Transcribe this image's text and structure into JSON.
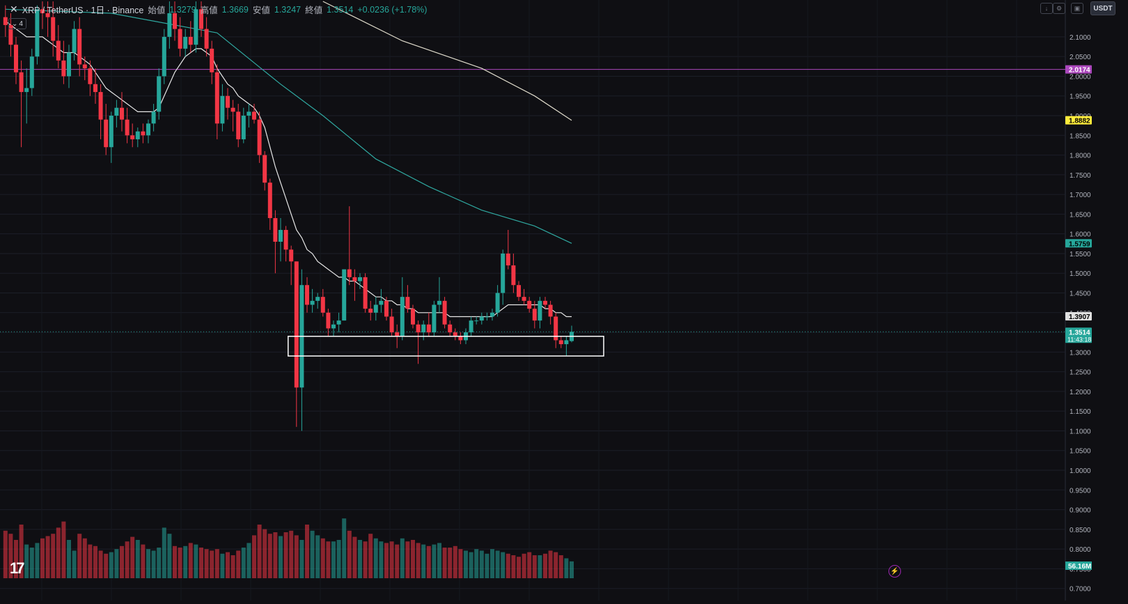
{
  "header": {
    "symbol": "XRP / TetherUS · 1日 · Binance",
    "open_label": "始値",
    "open": "1.3279",
    "high_label": "高値",
    "high": "1.3669",
    "low_label": "安値",
    "low": "1.3247",
    "close_label": "終値",
    "close": "1.3514",
    "change": "+0.0236 (+1.78%)"
  },
  "indicator_toggle": "4",
  "currency": "USDT",
  "colors": {
    "background": "#0f0f13",
    "up": "#26a69a",
    "down": "#f23645",
    "ma_short": "#e8e8e8",
    "ma_mid": "#2fa8a0",
    "ma_long": "#e0dccc",
    "hline": "#ab47bc",
    "support_box": "#ffffff"
  },
  "chart_data": {
    "type": "candlestick",
    "symbol": "XRP / TetherUS",
    "timeframe": "1日",
    "exchange": "Binance",
    "ylim": [
      0.68,
      2.19
    ],
    "y_ticks": [
      "2.1000",
      "2.0500",
      "2.0000",
      "1.9500",
      "1.9000",
      "1.8500",
      "1.8000",
      "1.7500",
      "1.7000",
      "1.6500",
      "1.6000",
      "1.5500",
      "1.5000",
      "1.4500",
      "1.4000",
      "1.3500",
      "1.3000",
      "1.2500",
      "1.2000",
      "1.1500",
      "1.1000",
      "1.0500",
      "1.0000",
      "0.9500",
      "0.9000",
      "0.8500",
      "0.8000",
      "0.7500",
      "0.7000"
    ],
    "candles": [
      {
        "o": 2.15,
        "h": 2.18,
        "l": 2.1,
        "c": 2.13
      },
      {
        "o": 2.13,
        "h": 2.16,
        "l": 2.05,
        "c": 2.08
      },
      {
        "o": 2.08,
        "h": 2.1,
        "l": 1.98,
        "c": 2.01
      },
      {
        "o": 2.01,
        "h": 2.04,
        "l": 1.82,
        "c": 1.96
      },
      {
        "o": 1.96,
        "h": 2.02,
        "l": 1.88,
        "c": 1.97
      },
      {
        "o": 1.97,
        "h": 2.07,
        "l": 1.95,
        "c": 2.05
      },
      {
        "o": 2.05,
        "h": 2.18,
        "l": 2.03,
        "c": 2.17
      },
      {
        "o": 2.17,
        "h": 2.19,
        "l": 2.12,
        "c": 2.16
      },
      {
        "o": 2.16,
        "h": 2.19,
        "l": 2.1,
        "c": 2.15
      },
      {
        "o": 2.15,
        "h": 2.19,
        "l": 2.05,
        "c": 2.09
      },
      {
        "o": 2.09,
        "h": 2.13,
        "l": 2.02,
        "c": 2.04
      },
      {
        "o": 2.04,
        "h": 2.09,
        "l": 1.98,
        "c": 2.0
      },
      {
        "o": 2.0,
        "h": 2.08,
        "l": 1.97,
        "c": 2.06
      },
      {
        "o": 2.06,
        "h": 2.14,
        "l": 2.04,
        "c": 2.12
      },
      {
        "o": 2.12,
        "h": 2.15,
        "l": 2.0,
        "c": 2.03
      },
      {
        "o": 2.03,
        "h": 2.05,
        "l": 1.99,
        "c": 2.02
      },
      {
        "o": 2.02,
        "h": 2.04,
        "l": 1.95,
        "c": 1.98
      },
      {
        "o": 1.98,
        "h": 2.02,
        "l": 1.93,
        "c": 1.96
      },
      {
        "o": 1.96,
        "h": 1.98,
        "l": 1.84,
        "c": 1.89
      },
      {
        "o": 1.89,
        "h": 1.93,
        "l": 1.8,
        "c": 1.82
      },
      {
        "o": 1.82,
        "h": 1.91,
        "l": 1.78,
        "c": 1.9
      },
      {
        "o": 1.9,
        "h": 1.94,
        "l": 1.87,
        "c": 1.92
      },
      {
        "o": 1.92,
        "h": 1.96,
        "l": 1.86,
        "c": 1.89
      },
      {
        "o": 1.89,
        "h": 1.92,
        "l": 1.83,
        "c": 1.85
      },
      {
        "o": 1.85,
        "h": 1.88,
        "l": 1.82,
        "c": 1.84
      },
      {
        "o": 1.84,
        "h": 1.87,
        "l": 1.82,
        "c": 1.86
      },
      {
        "o": 1.86,
        "h": 1.88,
        "l": 1.83,
        "c": 1.85
      },
      {
        "o": 1.85,
        "h": 1.89,
        "l": 1.83,
        "c": 1.88
      },
      {
        "o": 1.88,
        "h": 1.93,
        "l": 1.86,
        "c": 1.91
      },
      {
        "o": 1.91,
        "h": 2.02,
        "l": 1.89,
        "c": 2.0
      },
      {
        "o": 2.0,
        "h": 2.12,
        "l": 1.98,
        "c": 2.1
      },
      {
        "o": 2.1,
        "h": 2.19,
        "l": 2.07,
        "c": 2.16
      },
      {
        "o": 2.16,
        "h": 2.19,
        "l": 2.09,
        "c": 2.12
      },
      {
        "o": 2.12,
        "h": 2.15,
        "l": 2.05,
        "c": 2.07
      },
      {
        "o": 2.07,
        "h": 2.12,
        "l": 2.05,
        "c": 2.1
      },
      {
        "o": 2.1,
        "h": 2.14,
        "l": 2.06,
        "c": 2.08
      },
      {
        "o": 2.08,
        "h": 2.19,
        "l": 2.06,
        "c": 2.17
      },
      {
        "o": 2.17,
        "h": 2.19,
        "l": 2.1,
        "c": 2.12
      },
      {
        "o": 2.12,
        "h": 2.15,
        "l": 2.05,
        "c": 2.07
      },
      {
        "o": 2.07,
        "h": 2.09,
        "l": 1.98,
        "c": 2.01
      },
      {
        "o": 2.01,
        "h": 2.03,
        "l": 1.84,
        "c": 1.88
      },
      {
        "o": 1.88,
        "h": 1.98,
        "l": 1.86,
        "c": 1.95
      },
      {
        "o": 1.95,
        "h": 1.97,
        "l": 1.89,
        "c": 1.92
      },
      {
        "o": 1.92,
        "h": 1.94,
        "l": 1.86,
        "c": 1.91
      },
      {
        "o": 1.91,
        "h": 1.93,
        "l": 1.82,
        "c": 1.84
      },
      {
        "o": 1.84,
        "h": 1.92,
        "l": 1.83,
        "c": 1.9
      },
      {
        "o": 1.9,
        "h": 1.93,
        "l": 1.87,
        "c": 1.91
      },
      {
        "o": 1.91,
        "h": 1.93,
        "l": 1.88,
        "c": 1.89
      },
      {
        "o": 1.89,
        "h": 1.91,
        "l": 1.78,
        "c": 1.8
      },
      {
        "o": 1.8,
        "h": 1.81,
        "l": 1.71,
        "c": 1.73
      },
      {
        "o": 1.73,
        "h": 1.74,
        "l": 1.61,
        "c": 1.64
      },
      {
        "o": 1.64,
        "h": 1.66,
        "l": 1.5,
        "c": 1.58
      },
      {
        "o": 1.58,
        "h": 1.64,
        "l": 1.53,
        "c": 1.61
      },
      {
        "o": 1.61,
        "h": 1.62,
        "l": 1.53,
        "c": 1.56
      },
      {
        "o": 1.56,
        "h": 1.57,
        "l": 1.47,
        "c": 1.53
      },
      {
        "o": 1.53,
        "h": 1.53,
        "l": 1.11,
        "c": 1.21
      },
      {
        "o": 1.21,
        "h": 1.51,
        "l": 1.1,
        "c": 1.47
      },
      {
        "o": 1.47,
        "h": 1.49,
        "l": 1.4,
        "c": 1.42
      },
      {
        "o": 1.42,
        "h": 1.46,
        "l": 1.4,
        "c": 1.43
      },
      {
        "o": 1.43,
        "h": 1.45,
        "l": 1.41,
        "c": 1.44
      },
      {
        "o": 1.44,
        "h": 1.46,
        "l": 1.39,
        "c": 1.4
      },
      {
        "o": 1.4,
        "h": 1.41,
        "l": 1.34,
        "c": 1.36
      },
      {
        "o": 1.36,
        "h": 1.38,
        "l": 1.34,
        "c": 1.37
      },
      {
        "o": 1.37,
        "h": 1.4,
        "l": 1.35,
        "c": 1.38
      },
      {
        "o": 1.38,
        "h": 1.51,
        "l": 1.38,
        "c": 1.51
      },
      {
        "o": 1.51,
        "h": 1.67,
        "l": 1.47,
        "c": 1.49
      },
      {
        "o": 1.49,
        "h": 1.51,
        "l": 1.43,
        "c": 1.48
      },
      {
        "o": 1.48,
        "h": 1.5,
        "l": 1.46,
        "c": 1.49
      },
      {
        "o": 1.49,
        "h": 1.5,
        "l": 1.4,
        "c": 1.41
      },
      {
        "o": 1.41,
        "h": 1.43,
        "l": 1.38,
        "c": 1.4
      },
      {
        "o": 1.4,
        "h": 1.44,
        "l": 1.38,
        "c": 1.42
      },
      {
        "o": 1.42,
        "h": 1.46,
        "l": 1.4,
        "c": 1.43
      },
      {
        "o": 1.43,
        "h": 1.44,
        "l": 1.38,
        "c": 1.39
      },
      {
        "o": 1.39,
        "h": 1.41,
        "l": 1.34,
        "c": 1.35
      },
      {
        "o": 1.35,
        "h": 1.37,
        "l": 1.31,
        "c": 1.34
      },
      {
        "o": 1.34,
        "h": 1.49,
        "l": 1.33,
        "c": 1.44
      },
      {
        "o": 1.44,
        "h": 1.47,
        "l": 1.4,
        "c": 1.41
      },
      {
        "o": 1.41,
        "h": 1.42,
        "l": 1.36,
        "c": 1.37
      },
      {
        "o": 1.37,
        "h": 1.38,
        "l": 1.27,
        "c": 1.35
      },
      {
        "o": 1.35,
        "h": 1.38,
        "l": 1.33,
        "c": 1.37
      },
      {
        "o": 1.37,
        "h": 1.4,
        "l": 1.34,
        "c": 1.35
      },
      {
        "o": 1.35,
        "h": 1.43,
        "l": 1.34,
        "c": 1.42
      },
      {
        "o": 1.42,
        "h": 1.49,
        "l": 1.4,
        "c": 1.43
      },
      {
        "o": 1.43,
        "h": 1.44,
        "l": 1.36,
        "c": 1.37
      },
      {
        "o": 1.37,
        "h": 1.38,
        "l": 1.34,
        "c": 1.35
      },
      {
        "o": 1.35,
        "h": 1.36,
        "l": 1.33,
        "c": 1.34
      },
      {
        "o": 1.34,
        "h": 1.35,
        "l": 1.32,
        "c": 1.33
      },
      {
        "o": 1.33,
        "h": 1.36,
        "l": 1.32,
        "c": 1.35
      },
      {
        "o": 1.35,
        "h": 1.39,
        "l": 1.34,
        "c": 1.38
      },
      {
        "o": 1.38,
        "h": 1.39,
        "l": 1.37,
        "c": 1.38
      },
      {
        "o": 1.38,
        "h": 1.4,
        "l": 1.37,
        "c": 1.39
      },
      {
        "o": 1.39,
        "h": 1.4,
        "l": 1.38,
        "c": 1.39
      },
      {
        "o": 1.39,
        "h": 1.41,
        "l": 1.38,
        "c": 1.4
      },
      {
        "o": 1.4,
        "h": 1.47,
        "l": 1.39,
        "c": 1.45
      },
      {
        "o": 1.45,
        "h": 1.56,
        "l": 1.42,
        "c": 1.55
      },
      {
        "o": 1.55,
        "h": 1.61,
        "l": 1.51,
        "c": 1.52
      },
      {
        "o": 1.52,
        "h": 1.55,
        "l": 1.45,
        "c": 1.47
      },
      {
        "o": 1.47,
        "h": 1.48,
        "l": 1.43,
        "c": 1.44
      },
      {
        "o": 1.44,
        "h": 1.46,
        "l": 1.42,
        "c": 1.43
      },
      {
        "o": 1.43,
        "h": 1.44,
        "l": 1.4,
        "c": 1.41
      },
      {
        "o": 1.41,
        "h": 1.43,
        "l": 1.36,
        "c": 1.38
      },
      {
        "o": 1.38,
        "h": 1.44,
        "l": 1.36,
        "c": 1.43
      },
      {
        "o": 1.43,
        "h": 1.44,
        "l": 1.41,
        "c": 1.42
      },
      {
        "o": 1.42,
        "h": 1.43,
        "l": 1.37,
        "c": 1.39
      },
      {
        "o": 1.39,
        "h": 1.4,
        "l": 1.31,
        "c": 1.33
      },
      {
        "o": 1.33,
        "h": 1.34,
        "l": 1.31,
        "c": 1.32
      },
      {
        "o": 1.32,
        "h": 1.34,
        "l": 1.29,
        "c": 1.33
      },
      {
        "o": 1.3279,
        "h": 1.3669,
        "l": 1.3247,
        "c": 1.3514
      }
    ],
    "volume": [
      0.62,
      0.58,
      0.5,
      0.7,
      0.44,
      0.4,
      0.46,
      0.52,
      0.55,
      0.58,
      0.66,
      0.74,
      0.5,
      0.36,
      0.58,
      0.52,
      0.44,
      0.42,
      0.36,
      0.32,
      0.34,
      0.38,
      0.42,
      0.48,
      0.54,
      0.5,
      0.44,
      0.38,
      0.36,
      0.4,
      0.66,
      0.58,
      0.42,
      0.4,
      0.42,
      0.46,
      0.44,
      0.4,
      0.38,
      0.36,
      0.38,
      0.32,
      0.34,
      0.3,
      0.36,
      0.4,
      0.46,
      0.56,
      0.7,
      0.64,
      0.58,
      0.6,
      0.55,
      0.6,
      0.62,
      0.56,
      0.5,
      0.7,
      0.62,
      0.56,
      0.52,
      0.48,
      0.48,
      0.5,
      0.78,
      0.62,
      0.54,
      0.5,
      0.48,
      0.58,
      0.52,
      0.48,
      0.46,
      0.48,
      0.44,
      0.52,
      0.48,
      0.5,
      0.46,
      0.44,
      0.42,
      0.44,
      0.46,
      0.4,
      0.4,
      0.42,
      0.38,
      0.36,
      0.34,
      0.38,
      0.36,
      0.32,
      0.38,
      0.36,
      0.34,
      0.32,
      0.3,
      0.28,
      0.32,
      0.34,
      0.3,
      0.3,
      0.32,
      0.36,
      0.34,
      0.3,
      0.26,
      0.22
    ],
    "volume_note_values": {
      "spike_index": 55,
      "spike_next": 56
    },
    "ma_short": [
      2.14,
      2.13,
      2.12,
      2.11,
      2.1,
      2.1,
      2.1,
      2.1,
      2.09,
      2.08,
      2.07,
      2.06,
      2.06,
      2.06,
      2.05,
      2.04,
      2.03,
      2.01,
      1.99,
      1.97,
      1.96,
      1.95,
      1.94,
      1.93,
      1.92,
      1.91,
      1.91,
      1.91,
      1.91,
      1.92,
      1.95,
      1.98,
      2.01,
      2.03,
      2.05,
      2.06,
      2.07,
      2.07,
      2.06,
      2.05,
      2.02,
      2.0,
      1.98,
      1.97,
      1.95,
      1.94,
      1.93,
      1.92,
      1.9,
      1.87,
      1.82,
      1.77,
      1.73,
      1.69,
      1.65,
      1.61,
      1.59,
      1.56,
      1.55,
      1.53,
      1.52,
      1.51,
      1.5,
      1.49,
      1.49,
      1.48,
      1.48,
      1.47,
      1.46,
      1.45,
      1.44,
      1.44,
      1.43,
      1.43,
      1.42,
      1.42,
      1.41,
      1.41,
      1.4,
      1.4,
      1.4,
      1.4,
      1.4,
      1.4,
      1.39,
      1.39,
      1.39,
      1.39,
      1.39,
      1.39,
      1.39,
      1.39,
      1.39,
      1.4,
      1.41,
      1.42,
      1.42,
      1.42,
      1.42,
      1.42,
      1.42,
      1.42,
      1.41,
      1.41,
      1.4,
      1.4,
      1.39,
      1.39
    ],
    "ma_mid_points": [
      [
        0,
        2.17
      ],
      [
        20,
        2.16
      ],
      [
        40,
        2.11
      ],
      [
        52,
        1.98
      ],
      [
        60,
        1.9
      ],
      [
        70,
        1.79
      ],
      [
        80,
        1.72
      ],
      [
        90,
        1.66
      ],
      [
        100,
        1.62
      ],
      [
        107,
        1.5759
      ]
    ],
    "ma_long_points": [
      [
        60,
        2.19
      ],
      [
        75,
        2.09
      ],
      [
        90,
        2.02
      ],
      [
        100,
        1.95
      ],
      [
        107,
        1.8882
      ]
    ],
    "horizontal_line": 2.0174,
    "support_zone": {
      "top": 1.34,
      "bottom": 1.29
    },
    "price_tags": [
      {
        "value": 2.0174,
        "label": "2.0174",
        "color": "#ab47bc",
        "text_color": "#ffffff"
      },
      {
        "value": 1.8882,
        "label": "1.8882",
        "color": "#ffeb3b",
        "text_color": "#000000"
      },
      {
        "value": 1.5759,
        "label": "1.5759",
        "color": "#26a69a",
        "text_color": "#000000"
      },
      {
        "value": 1.3907,
        "label": "1.3907",
        "color": "#e0e0e0",
        "text_color": "#000000"
      },
      {
        "value": 1.3514,
        "label": "1.3514",
        "sub": "11:43:18",
        "color": "#26a69a",
        "text_color": "#ffffff"
      }
    ],
    "volume_tag": "56.16M",
    "grid": true,
    "legend": "none"
  }
}
